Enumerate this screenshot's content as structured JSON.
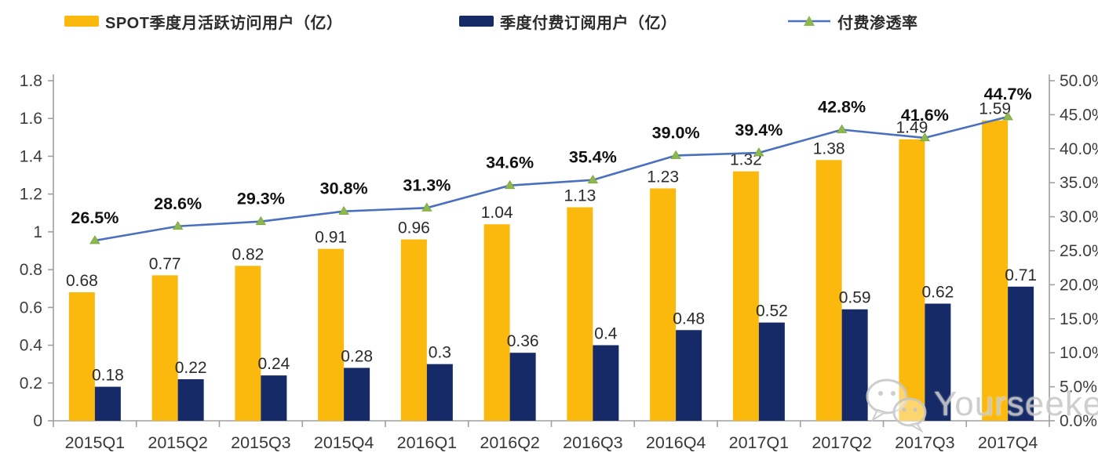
{
  "legend": {
    "mau_strong": "SPOT",
    "mau_label": "季度月活跃访问用户（亿）",
    "paid_label": "季度付费订阅用户（亿）",
    "rate_label": "付费渗透率"
  },
  "watermark": {
    "text": "Yourseeker",
    "icon": "wechat-icon"
  },
  "chart_data": {
    "type": "bar",
    "title": "",
    "xlabel": "",
    "ylabel": "",
    "categories": [
      "2015Q1",
      "2015Q2",
      "2015Q3",
      "2015Q4",
      "2016Q1",
      "2016Q2",
      "2016Q3",
      "2016Q4",
      "2017Q1",
      "2017Q2",
      "2017Q3",
      "2017Q4"
    ],
    "series": [
      {
        "name": "SPOT季度月活跃访问用户（亿）",
        "type": "bar",
        "axis": "left",
        "color": "#FBB90D",
        "values": [
          0.68,
          0.77,
          0.82,
          0.91,
          0.96,
          1.04,
          1.13,
          1.23,
          1.32,
          1.38,
          1.49,
          1.59
        ],
        "labels": [
          "0.68",
          "0.77",
          "0.82",
          "0.91",
          "0.96",
          "1.04",
          "1.13",
          "1.23",
          "1.32",
          "1.38",
          "1.49",
          "1.59"
        ]
      },
      {
        "name": "季度付费订阅用户（亿）",
        "type": "bar",
        "axis": "left",
        "color": "#152A66",
        "values": [
          0.18,
          0.22,
          0.24,
          0.28,
          0.3,
          0.36,
          0.4,
          0.48,
          0.52,
          0.59,
          0.62,
          0.71
        ],
        "labels": [
          "0.18",
          "0.22",
          "0.24",
          "0.28",
          "0.3",
          "0.36",
          "0.4",
          "0.48",
          "0.52",
          "0.59",
          "0.62",
          "0.71"
        ]
      },
      {
        "name": "付费渗透率",
        "type": "line",
        "axis": "right",
        "color": "#4A70BE",
        "marker": "triangle",
        "marker_color": "#8CB84E",
        "values": [
          26.5,
          28.6,
          29.3,
          30.8,
          31.3,
          34.6,
          35.4,
          39.0,
          39.4,
          42.8,
          41.6,
          44.7
        ],
        "labels": [
          "26.5%",
          "28.6%",
          "29.3%",
          "30.8%",
          "31.3%",
          "34.6%",
          "35.4%",
          "39.0%",
          "39.4%",
          "42.8%",
          "41.6%",
          "44.7%"
        ]
      }
    ],
    "left_axis": {
      "min": 0,
      "max": 1.8,
      "tick_step": 0.2,
      "tick_labels": [
        "0",
        "0.2",
        "0.4",
        "0.6",
        "0.8",
        "1",
        "1.2",
        "1.4",
        "1.6",
        "1.8"
      ]
    },
    "right_axis": {
      "min": 0,
      "max": 50,
      "tick_step": 5,
      "tick_labels": [
        "0.0%",
        "5.0%",
        "10.0%",
        "15.0%",
        "20.0%",
        "25.0%",
        "30.0%",
        "35.0%",
        "40.0%",
        "45.0%",
        "50.0%"
      ]
    },
    "grid": false,
    "legend_position": "top",
    "axis_color": "#9f9f9f",
    "bar_label_color": "#2b2b2b",
    "pct_label_color": "#111111",
    "tick_label_color": "#3d3d3d"
  }
}
